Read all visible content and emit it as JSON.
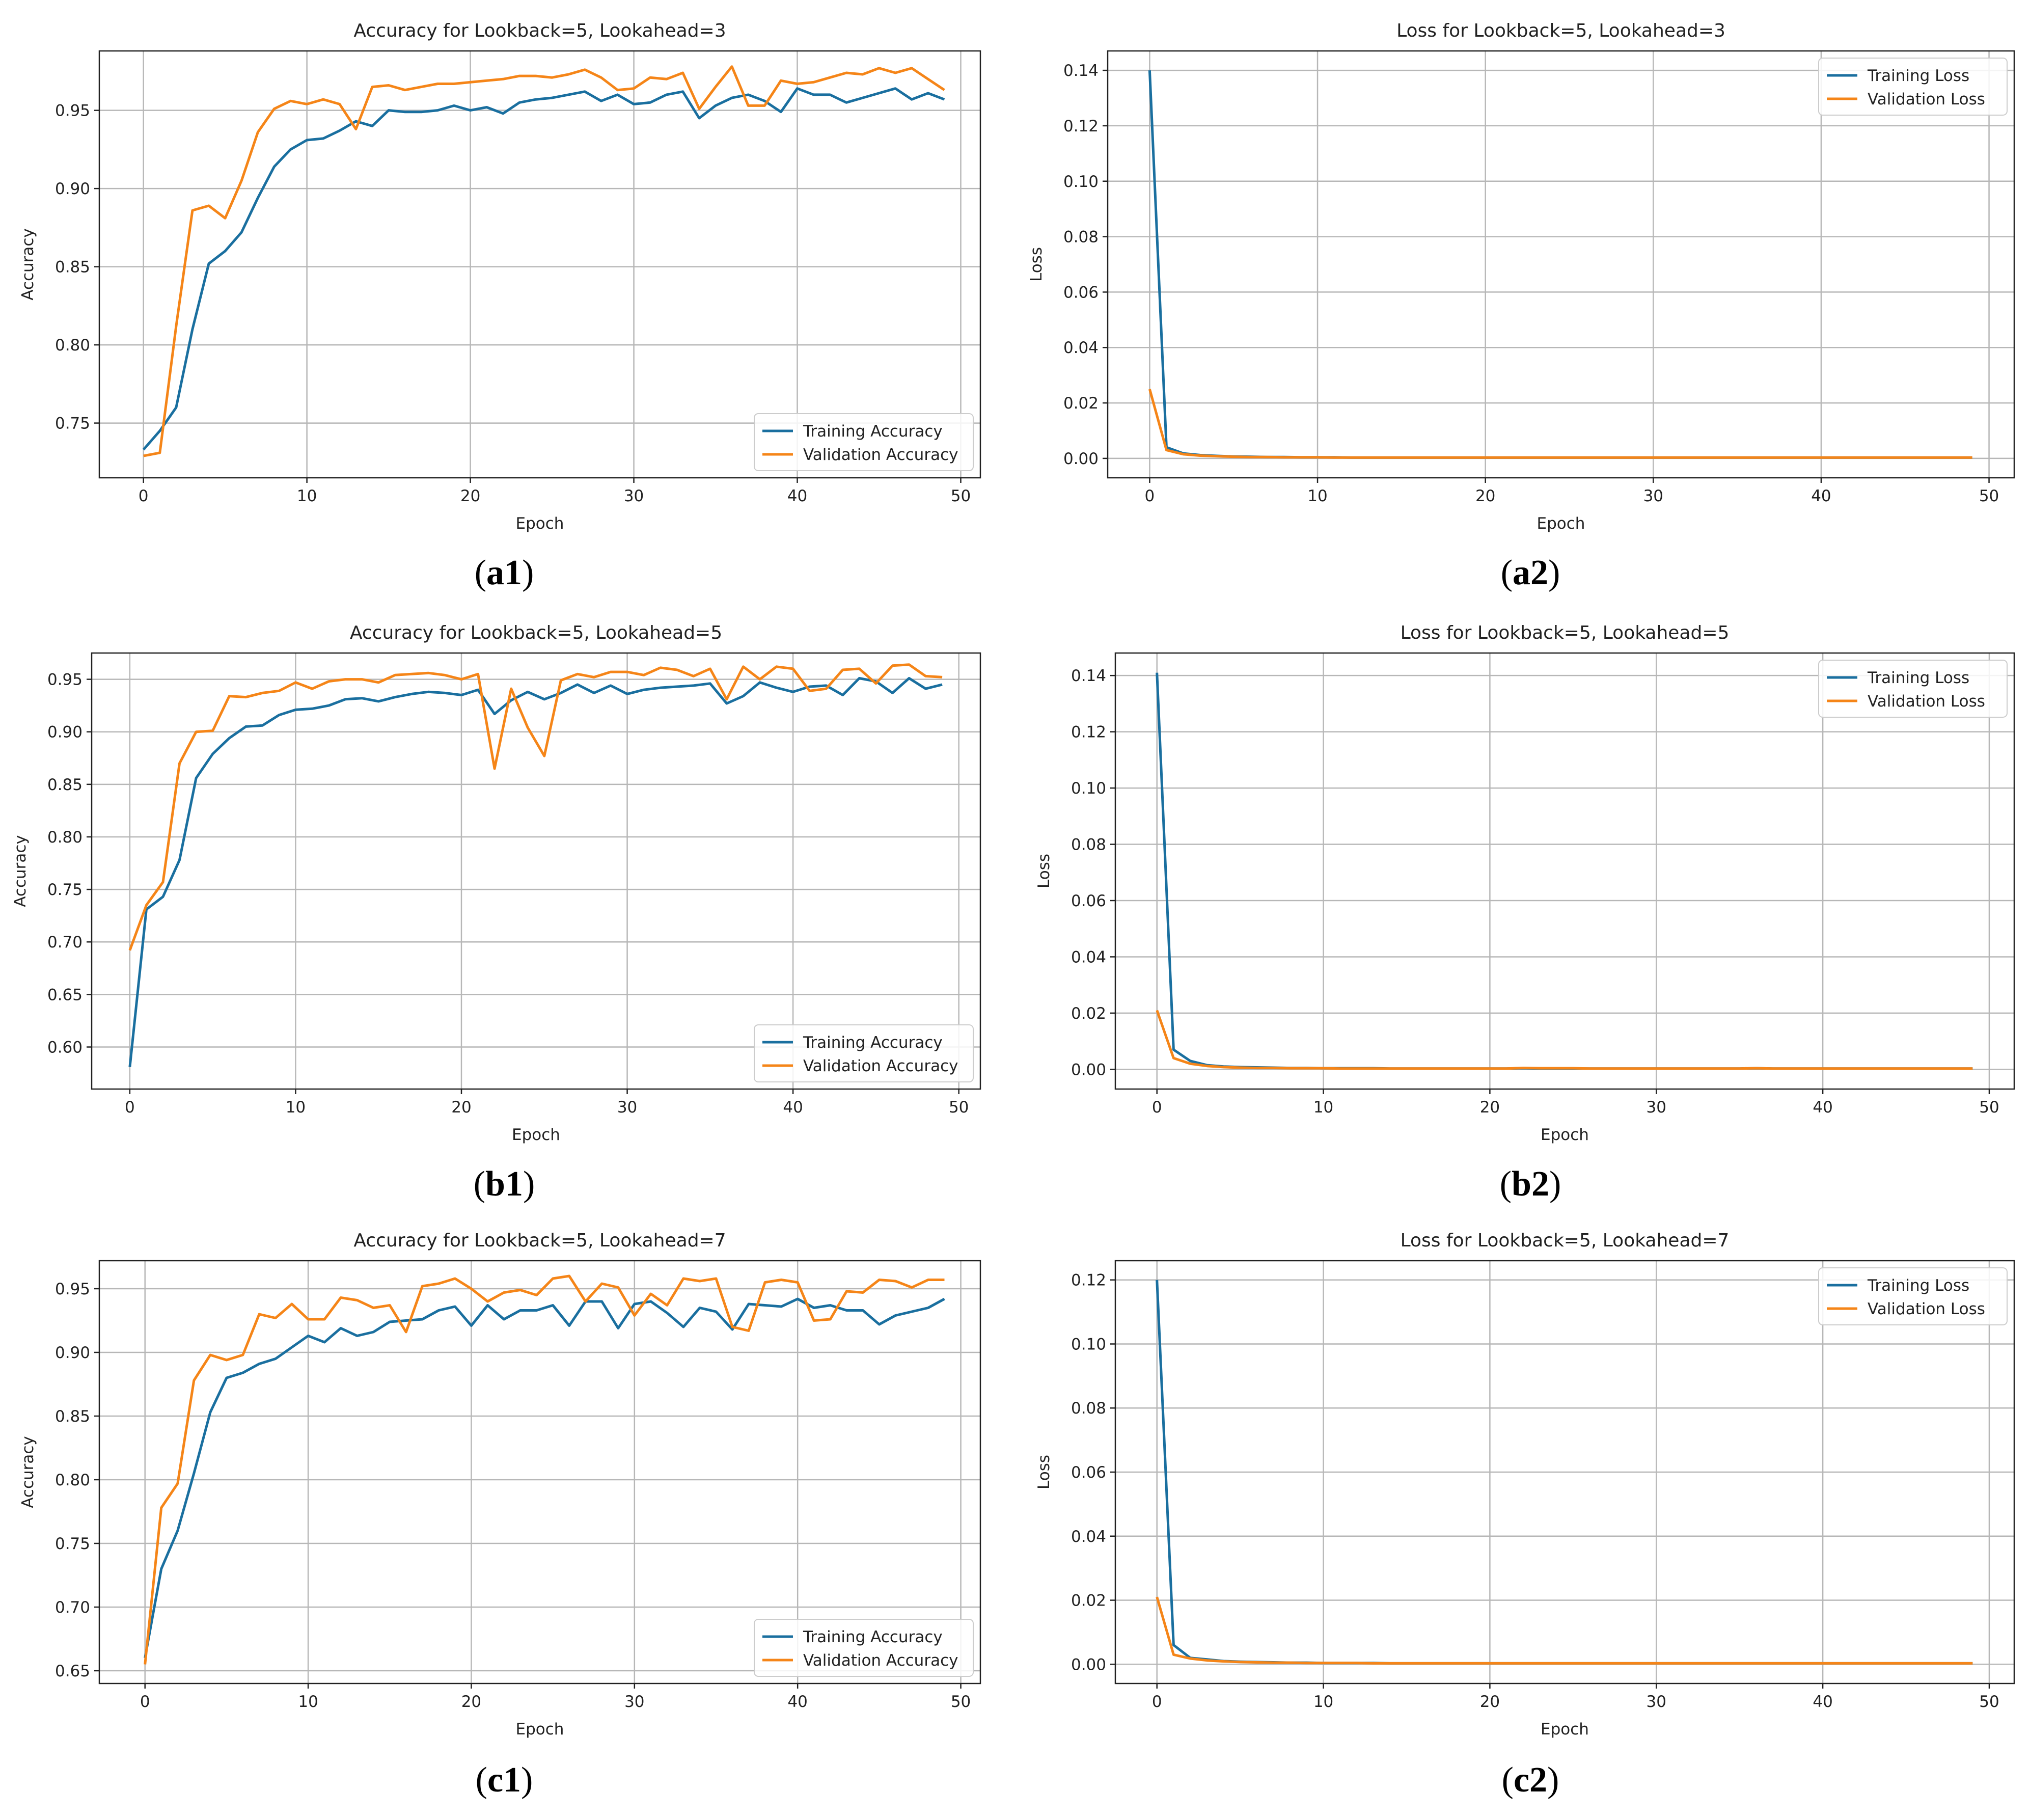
{
  "colors": {
    "training": "#1a6f9f",
    "validation": "#f58518",
    "grid": "#b7b7b7",
    "axis": "#222222"
  },
  "chart_data": [
    {
      "id": "a1",
      "type": "line",
      "panel_label": "a1",
      "title": "Accuracy for Lookback=5, Lookahead=3",
      "xlabel": "Epoch",
      "ylabel": "Accuracy",
      "xlim": [
        -2.7,
        51.2
      ],
      "ylim": [
        0.715,
        0.988
      ],
      "xticks": [
        0,
        10,
        20,
        30,
        40,
        50
      ],
      "xtick_labels": [
        "0",
        "10",
        "20",
        "30",
        "40",
        "50"
      ],
      "yticks": [
        0.75,
        0.8,
        0.85,
        0.9,
        0.95
      ],
      "ytick_labels": [
        "0.75",
        "0.80",
        "0.85",
        "0.90",
        "0.95"
      ],
      "legend_position": "bottom-right",
      "series": [
        {
          "name": "Training Accuracy",
          "color_key": "training",
          "values": [
            0.733,
            0.745,
            0.76,
            0.81,
            0.852,
            0.86,
            0.872,
            0.894,
            0.914,
            0.925,
            0.931,
            0.932,
            0.937,
            0.943,
            0.94,
            0.95,
            0.949,
            0.949,
            0.95,
            0.953,
            0.95,
            0.952,
            0.948,
            0.955,
            0.957,
            0.958,
            0.96,
            0.962,
            0.956,
            0.96,
            0.954,
            0.955,
            0.96,
            0.962,
            0.945,
            0.953,
            0.958,
            0.96,
            0.956,
            0.949,
            0.964,
            0.96,
            0.96,
            0.955,
            0.958,
            0.961,
            0.964,
            0.957,
            0.961,
            0.957
          ]
        },
        {
          "name": "Validation Accuracy",
          "color_key": "validation",
          "values": [
            0.729,
            0.731,
            0.812,
            0.886,
            0.889,
            0.881,
            0.905,
            0.936,
            0.951,
            0.956,
            0.954,
            0.957,
            0.954,
            0.938,
            0.965,
            0.966,
            0.963,
            0.965,
            0.967,
            0.967,
            0.968,
            0.969,
            0.97,
            0.972,
            0.972,
            0.971,
            0.973,
            0.976,
            0.971,
            0.963,
            0.964,
            0.971,
            0.97,
            0.974,
            0.951,
            0.965,
            0.978,
            0.953,
            0.953,
            0.969,
            0.967,
            0.968,
            0.971,
            0.974,
            0.973,
            0.977,
            0.974,
            0.977,
            0.97,
            0.963
          ]
        }
      ]
    },
    {
      "id": "a2",
      "type": "line",
      "panel_label": "a2",
      "title": "Loss for Lookback=5, Lookahead=3",
      "xlabel": "Epoch",
      "ylabel": "Loss",
      "xlim": [
        -2.5,
        51.5
      ],
      "ylim": [
        -0.007,
        0.147
      ],
      "xticks": [
        0,
        10,
        20,
        30,
        40,
        50
      ],
      "xtick_labels": [
        "0",
        "10",
        "20",
        "30",
        "40",
        "50"
      ],
      "yticks": [
        0.0,
        0.02,
        0.04,
        0.06,
        0.08,
        0.1,
        0.12,
        0.14
      ],
      "ytick_labels": [
        "0.00",
        "0.02",
        "0.04",
        "0.06",
        "0.08",
        "0.10",
        "0.12",
        "0.14"
      ],
      "legend_position": "top-right",
      "series": [
        {
          "name": "Training Loss",
          "color_key": "training",
          "values": [
            0.14,
            0.004,
            0.0018,
            0.0012,
            0.0009,
            0.0007,
            0.0006,
            0.0005,
            0.0005,
            0.0004,
            0.0004,
            0.0004,
            0.0003,
            0.0003,
            0.0003,
            0.0003,
            0.0003,
            0.0003,
            0.0003,
            0.0003,
            0.0003,
            0.0003,
            0.0003,
            0.0003,
            0.0003,
            0.0003,
            0.0003,
            0.0003,
            0.0003,
            0.0003,
            0.0003,
            0.0003,
            0.0003,
            0.0003,
            0.0003,
            0.0003,
            0.0003,
            0.0003,
            0.0003,
            0.0003,
            0.0003,
            0.0003,
            0.0003,
            0.0003,
            0.0003,
            0.0003,
            0.0003,
            0.0003,
            0.0003,
            0.0003
          ]
        },
        {
          "name": "Validation Loss",
          "color_key": "validation",
          "values": [
            0.025,
            0.003,
            0.0015,
            0.001,
            0.0008,
            0.0006,
            0.0005,
            0.0005,
            0.0004,
            0.0004,
            0.0004,
            0.0003,
            0.0003,
            0.0003,
            0.0003,
            0.0003,
            0.0003,
            0.0003,
            0.0003,
            0.0003,
            0.0003,
            0.0003,
            0.0003,
            0.0003,
            0.0003,
            0.0003,
            0.0003,
            0.0003,
            0.0003,
            0.0003,
            0.0003,
            0.0003,
            0.0003,
            0.0003,
            0.0003,
            0.0003,
            0.0003,
            0.0003,
            0.0003,
            0.0003,
            0.0003,
            0.0003,
            0.0003,
            0.0003,
            0.0003,
            0.0003,
            0.0003,
            0.0003,
            0.0003,
            0.0003
          ]
        }
      ]
    },
    {
      "id": "b1",
      "type": "line",
      "panel_label": "b1",
      "title": "Accuracy for Lookback=5, Lookahead=5",
      "xlabel": "Epoch",
      "ylabel": "Accuracy",
      "xlim": [
        -2.3,
        51.3
      ],
      "ylim": [
        0.56,
        0.975
      ],
      "xticks": [
        0,
        10,
        20,
        30,
        40,
        50
      ],
      "xtick_labels": [
        "0",
        "10",
        "20",
        "30",
        "40",
        "50"
      ],
      "yticks": [
        0.6,
        0.65,
        0.7,
        0.75,
        0.8,
        0.85,
        0.9,
        0.95
      ],
      "ytick_labels": [
        "0.60",
        "0.65",
        "0.70",
        "0.75",
        "0.80",
        "0.85",
        "0.90",
        "0.95"
      ],
      "legend_position": "bottom-right",
      "series": [
        {
          "name": "Training Accuracy",
          "color_key": "training",
          "values": [
            0.581,
            0.731,
            0.743,
            0.778,
            0.856,
            0.879,
            0.894,
            0.905,
            0.906,
            0.916,
            0.921,
            0.922,
            0.925,
            0.931,
            0.932,
            0.929,
            0.933,
            0.936,
            0.938,
            0.937,
            0.935,
            0.94,
            0.917,
            0.93,
            0.938,
            0.931,
            0.937,
            0.945,
            0.937,
            0.944,
            0.936,
            0.94,
            0.942,
            0.943,
            0.944,
            0.946,
            0.927,
            0.934,
            0.947,
            0.942,
            0.938,
            0.943,
            0.944,
            0.935,
            0.951,
            0.948,
            0.937,
            0.951,
            0.941,
            0.945
          ]
        },
        {
          "name": "Validation Accuracy",
          "color_key": "validation",
          "values": [
            0.692,
            0.735,
            0.757,
            0.87,
            0.9,
            0.901,
            0.934,
            0.933,
            0.937,
            0.939,
            0.947,
            0.941,
            0.948,
            0.95,
            0.95,
            0.947,
            0.954,
            0.955,
            0.956,
            0.954,
            0.95,
            0.955,
            0.865,
            0.941,
            0.904,
            0.877,
            0.949,
            0.955,
            0.952,
            0.957,
            0.957,
            0.954,
            0.961,
            0.959,
            0.953,
            0.96,
            0.931,
            0.962,
            0.95,
            0.962,
            0.96,
            0.939,
            0.941,
            0.959,
            0.96,
            0.946,
            0.963,
            0.964,
            0.953,
            0.952
          ]
        }
      ]
    },
    {
      "id": "b2",
      "type": "line",
      "panel_label": "b2",
      "title": "Loss for Lookback=5, Lookahead=5",
      "xlabel": "Epoch",
      "ylabel": "Loss",
      "xlim": [
        -2.5,
        51.5
      ],
      "ylim": [
        -0.007,
        0.148
      ],
      "xticks": [
        0,
        10,
        20,
        30,
        40,
        50
      ],
      "xtick_labels": [
        "0",
        "10",
        "20",
        "30",
        "40",
        "50"
      ],
      "yticks": [
        0.0,
        0.02,
        0.04,
        0.06,
        0.08,
        0.1,
        0.12,
        0.14
      ],
      "ytick_labels": [
        "0.00",
        "0.02",
        "0.04",
        "0.06",
        "0.08",
        "0.10",
        "0.12",
        "0.14"
      ],
      "legend_position": "top-right",
      "series": [
        {
          "name": "Training Loss",
          "color_key": "training",
          "values": [
            0.141,
            0.007,
            0.003,
            0.0015,
            0.001,
            0.0008,
            0.0007,
            0.0006,
            0.0005,
            0.0005,
            0.0004,
            0.0004,
            0.0004,
            0.0004,
            0.0003,
            0.0003,
            0.0003,
            0.0003,
            0.0003,
            0.0003,
            0.0003,
            0.0003,
            0.0004,
            0.0003,
            0.0003,
            0.0003,
            0.0003,
            0.0003,
            0.0003,
            0.0003,
            0.0003,
            0.0003,
            0.0003,
            0.0003,
            0.0003,
            0.0003,
            0.0004,
            0.0003,
            0.0003,
            0.0003,
            0.0003,
            0.0003,
            0.0003,
            0.0003,
            0.0003,
            0.0003,
            0.0003,
            0.0003,
            0.0003,
            0.0003
          ]
        },
        {
          "name": "Validation Loss",
          "color_key": "validation",
          "values": [
            0.021,
            0.004,
            0.002,
            0.0012,
            0.0008,
            0.0006,
            0.0005,
            0.0005,
            0.0004,
            0.0004,
            0.0004,
            0.0003,
            0.0003,
            0.0003,
            0.0003,
            0.0003,
            0.0003,
            0.0003,
            0.0003,
            0.0003,
            0.0003,
            0.0003,
            0.0005,
            0.0004,
            0.0004,
            0.0004,
            0.0003,
            0.0003,
            0.0003,
            0.0003,
            0.0003,
            0.0003,
            0.0003,
            0.0003,
            0.0003,
            0.0003,
            0.0004,
            0.0003,
            0.0003,
            0.0003,
            0.0003,
            0.0003,
            0.0003,
            0.0003,
            0.0003,
            0.0003,
            0.0003,
            0.0003,
            0.0003,
            0.0003
          ]
        }
      ]
    },
    {
      "id": "c1",
      "type": "line",
      "panel_label": "c1",
      "title": "Accuracy for Lookback=5, Lookahead=7",
      "xlabel": "Epoch",
      "ylabel": "Accuracy",
      "xlim": [
        -2.8,
        51.2
      ],
      "ylim": [
        0.64,
        0.972
      ],
      "xticks": [
        0,
        10,
        20,
        30,
        40,
        50
      ],
      "xtick_labels": [
        "0",
        "10",
        "20",
        "30",
        "40",
        "50"
      ],
      "yticks": [
        0.65,
        0.7,
        0.75,
        0.8,
        0.85,
        0.9,
        0.95
      ],
      "ytick_labels": [
        "0.65",
        "0.70",
        "0.75",
        "0.80",
        "0.85",
        "0.90",
        "0.95"
      ],
      "legend_position": "bottom-right",
      "series": [
        {
          "name": "Training Accuracy",
          "color_key": "training",
          "values": [
            0.66,
            0.73,
            0.76,
            0.805,
            0.853,
            0.88,
            0.884,
            0.891,
            0.895,
            0.904,
            0.913,
            0.908,
            0.919,
            0.913,
            0.916,
            0.924,
            0.925,
            0.926,
            0.933,
            0.936,
            0.921,
            0.937,
            0.926,
            0.933,
            0.933,
            0.937,
            0.921,
            0.94,
            0.94,
            0.919,
            0.938,
            0.94,
            0.931,
            0.92,
            0.935,
            0.932,
            0.918,
            0.938,
            0.937,
            0.936,
            0.942,
            0.935,
            0.937,
            0.933,
            0.933,
            0.922,
            0.929,
            0.932,
            0.935,
            0.942
          ]
        },
        {
          "name": "Validation Accuracy",
          "color_key": "validation",
          "values": [
            0.655,
            0.778,
            0.797,
            0.878,
            0.898,
            0.894,
            0.898,
            0.93,
            0.927,
            0.938,
            0.926,
            0.926,
            0.943,
            0.941,
            0.935,
            0.937,
            0.916,
            0.952,
            0.954,
            0.958,
            0.95,
            0.94,
            0.947,
            0.949,
            0.945,
            0.958,
            0.96,
            0.94,
            0.954,
            0.951,
            0.929,
            0.946,
            0.937,
            0.958,
            0.956,
            0.958,
            0.92,
            0.917,
            0.955,
            0.957,
            0.955,
            0.925,
            0.926,
            0.948,
            0.947,
            0.957,
            0.956,
            0.951,
            0.957,
            0.957
          ]
        }
      ]
    },
    {
      "id": "c2",
      "type": "line",
      "panel_label": "c2",
      "title": "Loss for Lookback=5, Lookahead=7",
      "xlabel": "Epoch",
      "ylabel": "Loss",
      "xlim": [
        -2.5,
        51.5
      ],
      "ylim": [
        -0.006,
        0.126
      ],
      "xticks": [
        0,
        10,
        20,
        30,
        40,
        50
      ],
      "xtick_labels": [
        "0",
        "10",
        "20",
        "30",
        "40",
        "50"
      ],
      "yticks": [
        0.0,
        0.02,
        0.04,
        0.06,
        0.08,
        0.1,
        0.12
      ],
      "ytick_labels": [
        "0.00",
        "0.02",
        "0.04",
        "0.06",
        "0.08",
        "0.10",
        "0.12"
      ],
      "legend_position": "top-right",
      "series": [
        {
          "name": "Training Loss",
          "color_key": "training",
          "values": [
            0.12,
            0.006,
            0.002,
            0.0015,
            0.001,
            0.0008,
            0.0007,
            0.0006,
            0.0005,
            0.0005,
            0.0004,
            0.0004,
            0.0004,
            0.0004,
            0.0003,
            0.0003,
            0.0003,
            0.0003,
            0.0003,
            0.0003,
            0.0003,
            0.0003,
            0.0003,
            0.0003,
            0.0003,
            0.0003,
            0.0003,
            0.0003,
            0.0003,
            0.0003,
            0.0003,
            0.0003,
            0.0003,
            0.0003,
            0.0003,
            0.0003,
            0.0003,
            0.0003,
            0.0003,
            0.0003,
            0.0003,
            0.0003,
            0.0003,
            0.0003,
            0.0003,
            0.0003,
            0.0003,
            0.0003,
            0.0003,
            0.0003
          ]
        },
        {
          "name": "Validation Loss",
          "color_key": "validation",
          "values": [
            0.021,
            0.003,
            0.0018,
            0.0012,
            0.0009,
            0.0007,
            0.0006,
            0.0005,
            0.0005,
            0.0004,
            0.0004,
            0.0004,
            0.0004,
            0.0003,
            0.0003,
            0.0003,
            0.0003,
            0.0003,
            0.0003,
            0.0003,
            0.0003,
            0.0003,
            0.0003,
            0.0003,
            0.0003,
            0.0003,
            0.0003,
            0.0003,
            0.0003,
            0.0003,
            0.0003,
            0.0003,
            0.0003,
            0.0003,
            0.0003,
            0.0003,
            0.0003,
            0.0003,
            0.0003,
            0.0003,
            0.0003,
            0.0003,
            0.0003,
            0.0003,
            0.0003,
            0.0003,
            0.0003,
            0.0003,
            0.0003,
            0.0003
          ]
        }
      ]
    }
  ]
}
